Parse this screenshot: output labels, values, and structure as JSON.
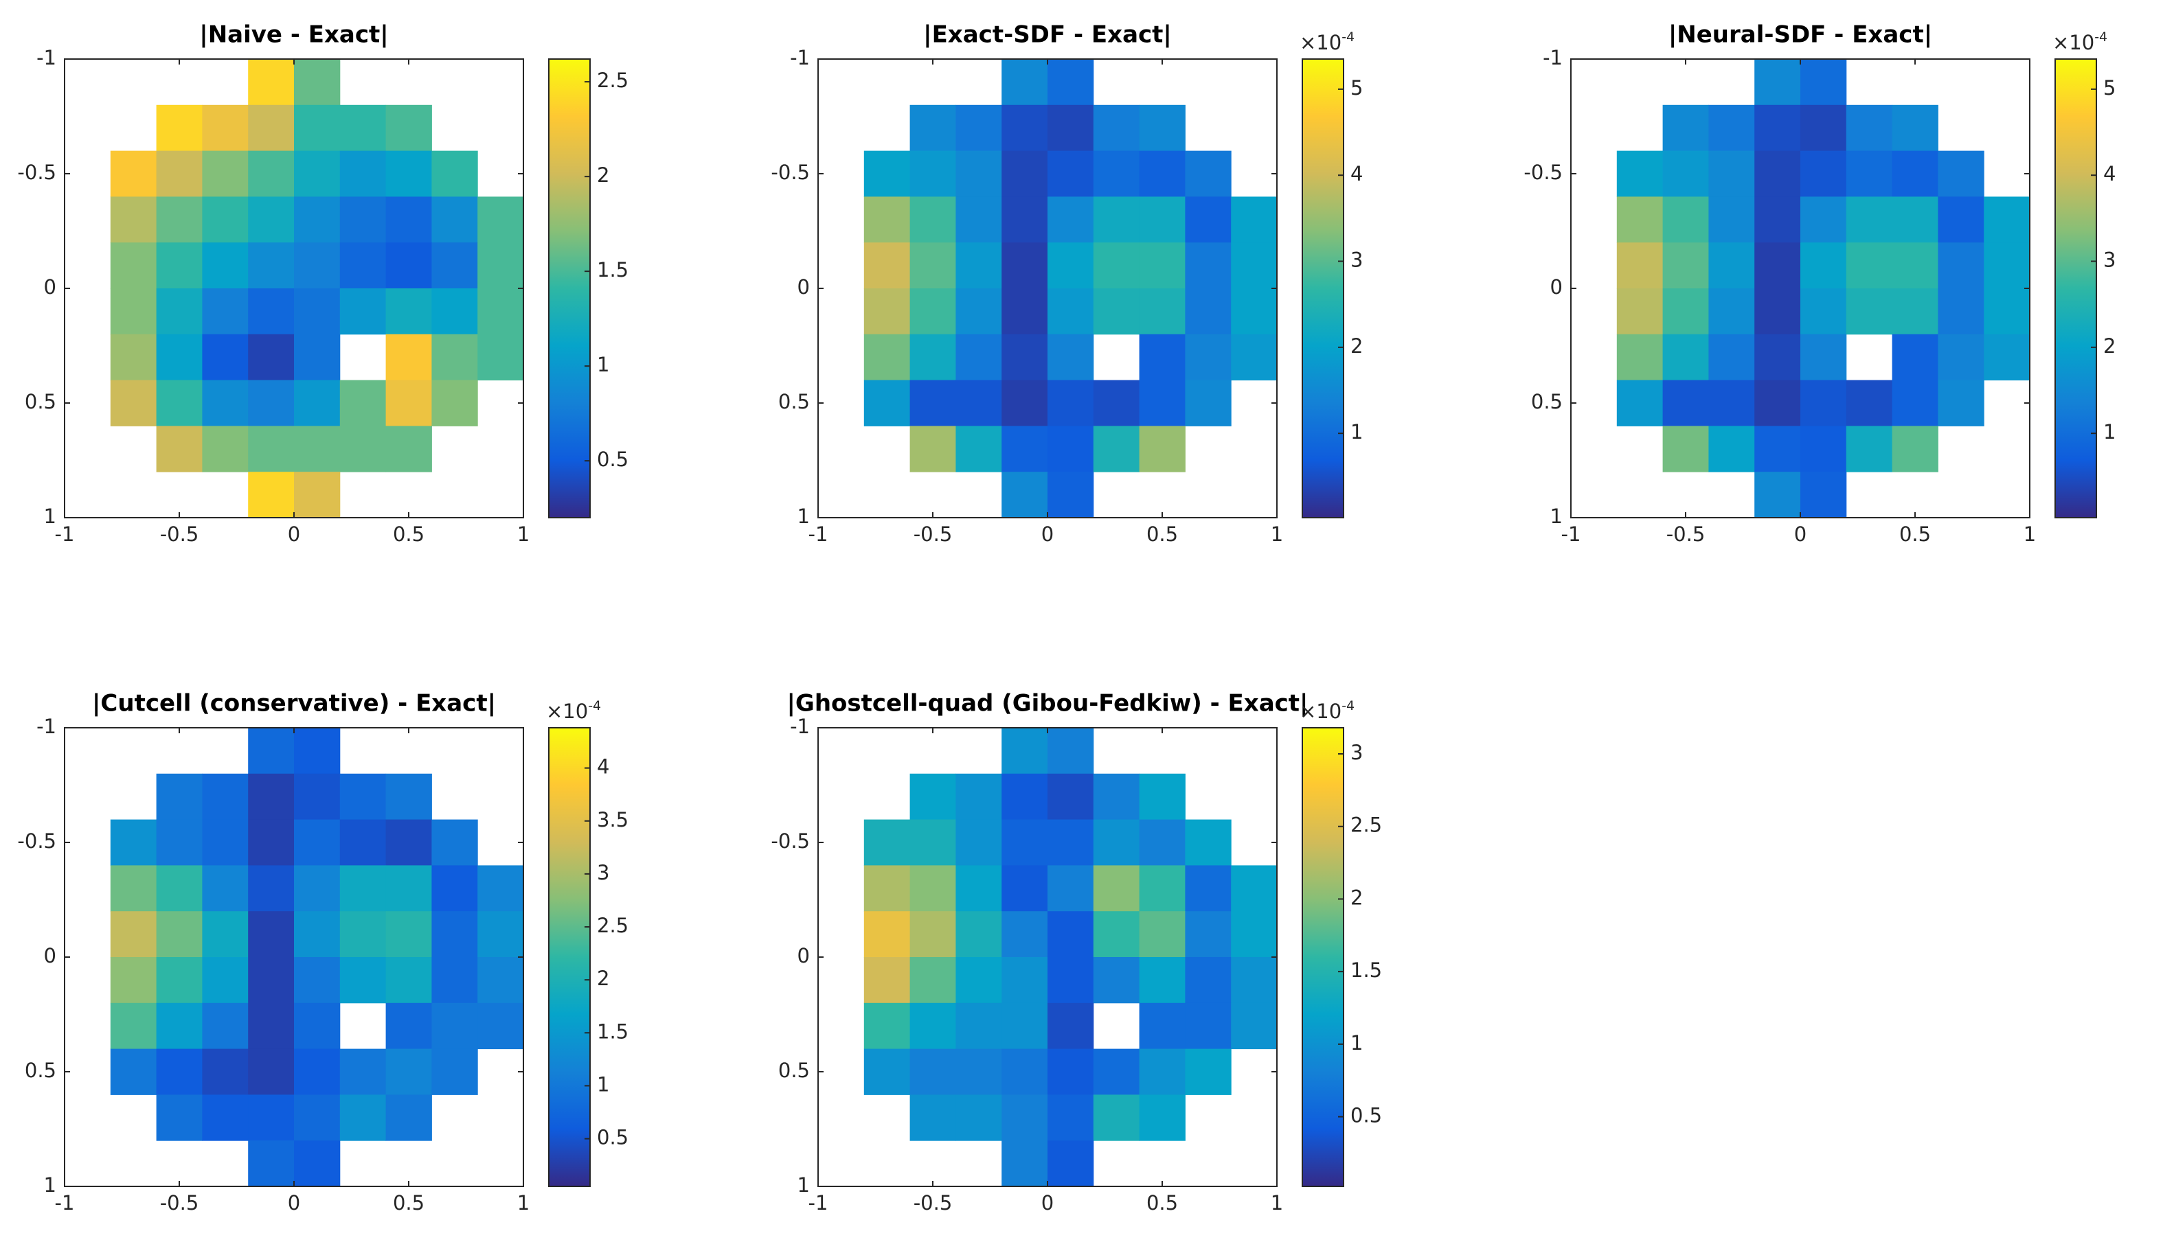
{
  "chart_data": [
    {
      "type": "heatmap",
      "title": "|Naive - Exact|",
      "colormap": "parula",
      "ydir": "reverse",
      "xlim": [
        -1,
        1
      ],
      "ylim": [
        -1,
        1
      ],
      "xticks": [
        -1,
        -0.5,
        0,
        0.5,
        1
      ],
      "yticks": [
        -1,
        -0.5,
        0,
        0.5,
        1
      ],
      "x": [
        -0.9,
        -0.7,
        -0.5,
        -0.3,
        -0.1,
        0.1,
        0.3,
        0.5,
        0.7,
        0.9
      ],
      "y": [
        -0.9,
        -0.7,
        -0.5,
        -0.3,
        -0.1,
        0.1,
        0.3,
        0.5,
        0.7,
        0.9
      ],
      "z": [
        [
          null,
          null,
          null,
          null,
          2.4,
          1.6,
          null,
          null,
          null,
          null
        ],
        [
          null,
          null,
          2.4,
          2.2,
          2.0,
          1.4,
          1.4,
          1.5,
          null,
          null
        ],
        [
          null,
          2.3,
          2.0,
          1.7,
          1.5,
          1.2,
          1.0,
          1.1,
          1.4,
          null
        ],
        [
          null,
          1.9,
          1.6,
          1.4,
          1.2,
          0.9,
          0.7,
          0.6,
          0.9,
          1.5
        ],
        [
          null,
          1.7,
          1.4,
          1.1,
          0.9,
          0.8,
          0.6,
          0.5,
          0.7,
          1.5
        ],
        [
          null,
          1.7,
          1.2,
          0.8,
          0.6,
          0.7,
          1.0,
          1.2,
          1.1,
          1.5
        ],
        [
          null,
          1.8,
          1.1,
          0.5,
          0.35,
          0.7,
          null,
          2.3,
          1.6,
          1.5
        ],
        [
          null,
          2.0,
          1.4,
          0.9,
          0.8,
          1.0,
          1.6,
          2.2,
          1.7,
          null
        ],
        [
          null,
          null,
          2.0,
          1.7,
          1.6,
          1.6,
          1.6,
          1.6,
          null,
          null
        ],
        [
          null,
          null,
          null,
          null,
          2.4,
          2.1,
          null,
          null,
          null,
          null
        ]
      ],
      "clim": [
        0.2,
        2.62
      ],
      "cticks": [
        0.5,
        1,
        1.5,
        2,
        2.5
      ]
    },
    {
      "type": "heatmap",
      "title": "|Exact-SDF - Exact|",
      "colormap": "parula",
      "ydir": "reverse",
      "xlim": [
        -1,
        1
      ],
      "ylim": [
        -1,
        1
      ],
      "xticks": [
        -1,
        -0.5,
        0,
        0.5,
        1
      ],
      "yticks": [
        -1,
        -0.5,
        0,
        0.5,
        1
      ],
      "x": [
        -0.9,
        -0.7,
        -0.5,
        -0.3,
        -0.1,
        0.1,
        0.3,
        0.5,
        0.7,
        0.9
      ],
      "y": [
        -0.9,
        -0.7,
        -0.5,
        -0.3,
        -0.1,
        0.1,
        0.3,
        0.5,
        0.7,
        0.9
      ],
      "z": [
        [
          null,
          null,
          null,
          null,
          1.5,
          1.0,
          null,
          null,
          null,
          null
        ],
        [
          null,
          null,
          1.5,
          1.2,
          0.5,
          0.4,
          1.3,
          1.5,
          null,
          null
        ],
        [
          null,
          2.0,
          1.8,
          1.5,
          0.4,
          0.6,
          1.0,
          0.8,
          1.2,
          null
        ],
        [
          null,
          3.5,
          2.8,
          1.5,
          0.4,
          1.5,
          2.2,
          2.2,
          0.8,
          2.0
        ],
        [
          null,
          4.0,
          3.0,
          1.8,
          0.3,
          2.0,
          2.6,
          2.6,
          1.2,
          2.0
        ],
        [
          null,
          3.8,
          2.8,
          1.6,
          0.3,
          1.8,
          2.4,
          2.4,
          1.2,
          2.0
        ],
        [
          null,
          3.2,
          2.2,
          1.2,
          0.4,
          1.4,
          null,
          0.8,
          1.4,
          1.8
        ],
        [
          null,
          1.8,
          0.6,
          0.6,
          0.3,
          0.6,
          0.5,
          0.8,
          1.5,
          null
        ],
        [
          null,
          null,
          3.6,
          2.2,
          0.8,
          0.7,
          2.4,
          3.5,
          null,
          null
        ],
        [
          null,
          null,
          null,
          null,
          1.5,
          0.8,
          null,
          null,
          null,
          null
        ]
      ],
      "clim": [
        0.02,
        5.35
      ],
      "cticks": [
        1,
        2,
        3,
        4,
        5
      ],
      "multiplier_base": "×10",
      "multiplier_exponent": "-4"
    },
    {
      "type": "heatmap",
      "title": "|Neural-SDF - Exact|",
      "colormap": "parula",
      "ydir": "reverse",
      "xlim": [
        -1,
        1
      ],
      "ylim": [
        -1,
        1
      ],
      "xticks": [
        -1,
        -0.5,
        0,
        0.5,
        1
      ],
      "yticks": [
        -1,
        -0.5,
        0,
        0.5,
        1
      ],
      "x": [
        -0.9,
        -0.7,
        -0.5,
        -0.3,
        -0.1,
        0.1,
        0.3,
        0.5,
        0.7,
        0.9
      ],
      "y": [
        -0.9,
        -0.7,
        -0.5,
        -0.3,
        -0.1,
        0.1,
        0.3,
        0.5,
        0.7,
        0.9
      ],
      "z": [
        [
          null,
          null,
          null,
          null,
          1.5,
          1.0,
          null,
          null,
          null,
          null
        ],
        [
          null,
          null,
          1.5,
          1.2,
          0.5,
          0.4,
          1.3,
          1.5,
          null,
          null
        ],
        [
          null,
          2.0,
          1.8,
          1.5,
          0.4,
          0.6,
          1.0,
          0.8,
          1.2,
          null
        ],
        [
          null,
          3.4,
          2.8,
          1.5,
          0.4,
          1.5,
          2.2,
          2.2,
          0.8,
          2.0
        ],
        [
          null,
          3.9,
          3.0,
          1.8,
          0.3,
          2.0,
          2.6,
          2.6,
          1.2,
          2.0
        ],
        [
          null,
          3.8,
          2.8,
          1.6,
          0.3,
          1.8,
          2.4,
          2.4,
          1.2,
          2.0
        ],
        [
          null,
          3.2,
          2.2,
          1.2,
          0.4,
          1.4,
          null,
          0.8,
          1.4,
          1.8
        ],
        [
          null,
          1.8,
          0.6,
          0.6,
          0.3,
          0.6,
          0.5,
          0.8,
          1.5,
          null
        ],
        [
          null,
          null,
          3.2,
          2.0,
          0.8,
          0.7,
          2.2,
          3.0,
          null,
          null
        ],
        [
          null,
          null,
          null,
          null,
          1.5,
          0.8,
          null,
          null,
          null,
          null
        ]
      ],
      "clim": [
        0.02,
        5.35
      ],
      "cticks": [
        1,
        2,
        3,
        4,
        5
      ],
      "multiplier_base": "×10",
      "multiplier_exponent": "-4"
    },
    {
      "type": "heatmap",
      "title": "|Cutcell (conservative) - Exact|",
      "colormap": "parula",
      "ydir": "reverse",
      "xlim": [
        -1,
        1
      ],
      "ylim": [
        -1,
        1
      ],
      "xticks": [
        -1,
        -0.5,
        0,
        0.5,
        1
      ],
      "yticks": [
        -1,
        -0.5,
        0,
        0.5,
        1
      ],
      "x": [
        -0.9,
        -0.7,
        -0.5,
        -0.3,
        -0.1,
        0.1,
        0.3,
        0.5,
        0.7,
        0.9
      ],
      "y": [
        -0.9,
        -0.7,
        -0.5,
        -0.3,
        -0.1,
        0.1,
        0.3,
        0.5,
        0.7,
        0.9
      ],
      "z": [
        [
          null,
          null,
          null,
          null,
          0.8,
          0.6,
          null,
          null,
          null,
          null
        ],
        [
          null,
          null,
          1.0,
          0.8,
          0.3,
          0.5,
          0.8,
          1.0,
          null,
          null
        ],
        [
          null,
          1.4,
          1.0,
          0.8,
          0.3,
          0.8,
          0.5,
          0.4,
          1.0,
          null
        ],
        [
          null,
          2.6,
          2.2,
          1.2,
          0.5,
          1.2,
          1.8,
          1.8,
          0.6,
          1.2
        ],
        [
          null,
          3.2,
          2.6,
          1.8,
          0.3,
          1.4,
          2.0,
          2.1,
          0.8,
          1.4
        ],
        [
          null,
          2.8,
          2.2,
          1.6,
          0.3,
          1.0,
          1.6,
          1.8,
          0.8,
          1.2
        ],
        [
          null,
          2.4,
          1.6,
          1.0,
          0.3,
          0.8,
          null,
          0.8,
          1.0,
          1.0
        ],
        [
          null,
          1.0,
          0.6,
          0.4,
          0.3,
          0.6,
          1.0,
          1.2,
          1.0,
          null
        ],
        [
          null,
          null,
          0.9,
          0.6,
          0.6,
          0.8,
          1.4,
          1.0,
          null,
          null
        ],
        [
          null,
          null,
          null,
          null,
          0.8,
          0.6,
          null,
          null,
          null,
          null
        ]
      ],
      "clim": [
        0.05,
        4.38
      ],
      "cticks": [
        0.5,
        1,
        1.5,
        2,
        2.5,
        3,
        3.5,
        4
      ],
      "multiplier_base": "×10",
      "multiplier_exponent": "-4"
    },
    {
      "type": "heatmap",
      "title": "|Ghostcell-quad (Gibou-Fedkiw) - Exact|",
      "colormap": "parula",
      "ydir": "reverse",
      "xlim": [
        -1,
        1
      ],
      "ylim": [
        -1,
        1
      ],
      "xticks": [
        -1,
        -0.5,
        0,
        0.5,
        1
      ],
      "yticks": [
        -1,
        -0.5,
        0,
        0.5,
        1
      ],
      "x": [
        -0.9,
        -0.7,
        -0.5,
        -0.3,
        -0.1,
        0.1,
        0.3,
        0.5,
        0.7,
        0.9
      ],
      "y": [
        -0.9,
        -0.7,
        -0.5,
        -0.3,
        -0.1,
        0.1,
        0.3,
        0.5,
        0.7,
        0.9
      ],
      "z": [
        [
          null,
          null,
          null,
          null,
          1.0,
          0.8,
          null,
          null,
          null,
          null
        ],
        [
          null,
          null,
          1.2,
          1.0,
          0.4,
          0.3,
          0.8,
          1.2,
          null,
          null
        ],
        [
          null,
          1.4,
          1.4,
          1.0,
          0.5,
          0.5,
          1.0,
          0.8,
          1.2,
          null
        ],
        [
          null,
          2.2,
          2.0,
          1.2,
          0.4,
          0.8,
          2.0,
          1.6,
          0.6,
          1.2
        ],
        [
          null,
          2.6,
          2.2,
          1.4,
          0.8,
          0.4,
          1.6,
          1.8,
          0.8,
          1.2
        ],
        [
          null,
          2.4,
          1.8,
          1.2,
          1.0,
          0.4,
          0.8,
          1.2,
          0.6,
          1.0
        ],
        [
          null,
          1.6,
          1.2,
          1.0,
          1.0,
          0.3,
          null,
          0.6,
          0.6,
          1.0
        ],
        [
          null,
          1.0,
          0.8,
          0.8,
          0.7,
          0.4,
          0.6,
          1.0,
          1.2,
          null
        ],
        [
          null,
          null,
          1.0,
          1.0,
          0.8,
          0.5,
          1.4,
          1.2,
          null,
          null
        ],
        [
          null,
          null,
          null,
          null,
          0.8,
          0.4,
          null,
          null,
          null,
          null
        ]
      ],
      "clim": [
        0.02,
        3.18
      ],
      "cticks": [
        0.5,
        1,
        1.5,
        2,
        2.5,
        3
      ],
      "multiplier_base": "×10",
      "multiplier_exponent": "-4"
    }
  ]
}
